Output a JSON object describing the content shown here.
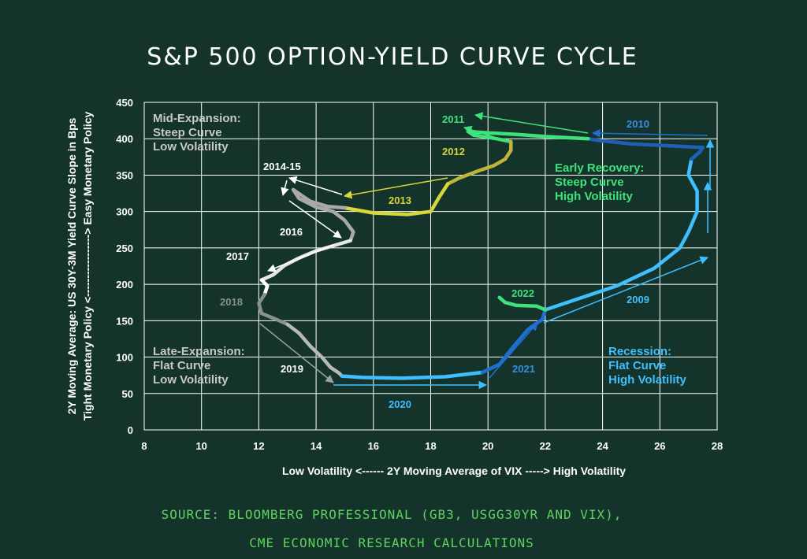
{
  "title": "S&P 500 OPTION-YIELD CURVE CYCLE",
  "source_lines": [
    "SOURCE: BLOOMBERG PROFESSIONAL (GB3, USGG30YR AND VIX),",
    "CME ECONOMIC RESEARCH CALCULATIONS"
  ],
  "colors": {
    "background": "#14342b",
    "grid": "#ffffff",
    "source_text": "#5fd35f",
    "white": "#ffffff",
    "light_gray": "#c8c8c8",
    "gray": "#8a8f8f",
    "yellow": "#d7d63a",
    "olive": "#bfb43a",
    "green": "#3fe27a",
    "blue": "#1f6fd1",
    "dark_blue": "#1f5fb8",
    "light_blue": "#3fbfff"
  },
  "chart_data": {
    "type": "line",
    "title": "S&P 500 OPTION-YIELD CURVE CYCLE",
    "xlabel": "Low Volatility <------ 2Y Moving Average of VIX -----> High Volatility",
    "ylabel_lines": [
      "2Y Moving Average: US 30Y-3M  Yield Curve Slope in Bps",
      "Tight Monetary Policy <-----------------> Easy Monetary Policy"
    ],
    "xlim": [
      8,
      28
    ],
    "ylim": [
      0,
      450
    ],
    "xticks": [
      8,
      10,
      12,
      14,
      16,
      18,
      20,
      22,
      24,
      26,
      28
    ],
    "yticks": [
      0,
      50,
      100,
      150,
      200,
      250,
      300,
      350,
      400,
      450
    ],
    "grid": true,
    "series": [
      {
        "name": "2009",
        "color": "#3fbfff",
        "points": [
          [
            22.0,
            165
          ],
          [
            24.5,
            198
          ],
          [
            25.8,
            222
          ],
          [
            26.7,
            250
          ],
          [
            27.0,
            272
          ],
          [
            27.3,
            300
          ],
          [
            27.3,
            328
          ],
          [
            27.0,
            350
          ],
          [
            27.1,
            372
          ]
        ]
      },
      {
        "name": "2010",
        "color": "#1f5fb8",
        "points": [
          [
            27.1,
            372
          ],
          [
            27.4,
            382
          ],
          [
            27.5,
            388
          ],
          [
            26.5,
            390
          ],
          [
            25.0,
            393
          ],
          [
            23.8,
            398
          ],
          [
            23.5,
            400
          ]
        ]
      },
      {
        "name": "2011",
        "color": "#3fe27a",
        "points": [
          [
            23.5,
            400
          ],
          [
            22.0,
            403
          ],
          [
            21.0,
            406
          ],
          [
            20.0,
            408
          ],
          [
            19.3,
            410
          ],
          [
            19.5,
            405
          ],
          [
            20.3,
            400
          ],
          [
            20.8,
            396
          ]
        ]
      },
      {
        "name": "2012",
        "color": "#bfb43a",
        "points": [
          [
            20.8,
            396
          ],
          [
            20.8,
            384
          ],
          [
            20.6,
            372
          ],
          [
            20.2,
            363
          ],
          [
            19.6,
            355
          ],
          [
            19.0,
            346
          ],
          [
            18.6,
            338
          ]
        ]
      },
      {
        "name": "2013",
        "color": "#d7d63a",
        "points": [
          [
            18.6,
            338
          ],
          [
            18.3,
            320
          ],
          [
            18.0,
            300
          ],
          [
            17.2,
            296
          ],
          [
            16.0,
            298
          ],
          [
            15.0,
            305
          ]
        ]
      },
      {
        "name": "2014-15",
        "color": "#a9a9a9",
        "points": [
          [
            15.0,
            305
          ],
          [
            14.4,
            307
          ],
          [
            13.8,
            314
          ],
          [
            13.5,
            322
          ],
          [
            13.2,
            330
          ],
          [
            13.4,
            318
          ],
          [
            14.0,
            306
          ],
          [
            14.6,
            300
          ],
          [
            15.0,
            288
          ],
          [
            15.3,
            272
          ],
          [
            15.2,
            260
          ]
        ]
      },
      {
        "name": "2016",
        "color": "#e6e6e6",
        "points": [
          [
            15.2,
            260
          ],
          [
            14.6,
            253
          ],
          [
            14.0,
            246
          ],
          [
            13.4,
            236
          ],
          [
            12.9,
            226
          ],
          [
            12.5,
            213
          ],
          [
            12.1,
            206
          ]
        ]
      },
      {
        "name": "2017",
        "color": "#ffffff",
        "points": [
          [
            12.1,
            206
          ],
          [
            12.3,
            198
          ],
          [
            12.2,
            186
          ]
        ]
      },
      {
        "name": "2018",
        "color": "#8a8f8f",
        "points": [
          [
            12.2,
            186
          ],
          [
            12.0,
            174
          ],
          [
            12.1,
            160
          ],
          [
            12.6,
            152
          ],
          [
            13.0,
            145
          ]
        ]
      },
      {
        "name": "2019",
        "color": "#b8b8b8",
        "points": [
          [
            13.0,
            145
          ],
          [
            13.4,
            133
          ],
          [
            13.8,
            115
          ],
          [
            14.2,
            100
          ],
          [
            14.5,
            86
          ],
          [
            14.8,
            78
          ],
          [
            14.9,
            74
          ]
        ]
      },
      {
        "name": "2020",
        "color": "#3fbfff",
        "points": [
          [
            14.9,
            74
          ],
          [
            15.6,
            72
          ],
          [
            17.0,
            71
          ],
          [
            18.5,
            73
          ],
          [
            19.8,
            79
          ]
        ]
      },
      {
        "name": "2021",
        "color": "#1f6fd1",
        "points": [
          [
            19.8,
            79
          ],
          [
            20.4,
            90
          ],
          [
            20.9,
            115
          ],
          [
            21.4,
            138
          ],
          [
            21.9,
            152
          ],
          [
            22.0,
            165
          ]
        ]
      },
      {
        "name": "2022",
        "color": "#3fe27a",
        "points": [
          [
            22.0,
            165
          ],
          [
            21.7,
            170
          ],
          [
            21.0,
            171
          ],
          [
            20.6,
            175
          ],
          [
            20.4,
            182
          ]
        ]
      }
    ],
    "regions": [
      {
        "lines": [
          "Mid-Expansion:",
          "Steep Curve",
          "Low Volatility"
        ],
        "color": "#c8c8c8"
      },
      {
        "lines": [
          "Early Recovery:",
          "Steep Curve",
          "High Volatility"
        ],
        "color": "#3fe27a"
      },
      {
        "lines": [
          "Late-Expansion:",
          "Flat Curve",
          "Low Volatility"
        ],
        "color": "#c8c8c8"
      },
      {
        "lines": [
          "Recession:",
          "Flat Curve",
          "High Volatility"
        ],
        "color": "#3fbfff"
      }
    ]
  }
}
